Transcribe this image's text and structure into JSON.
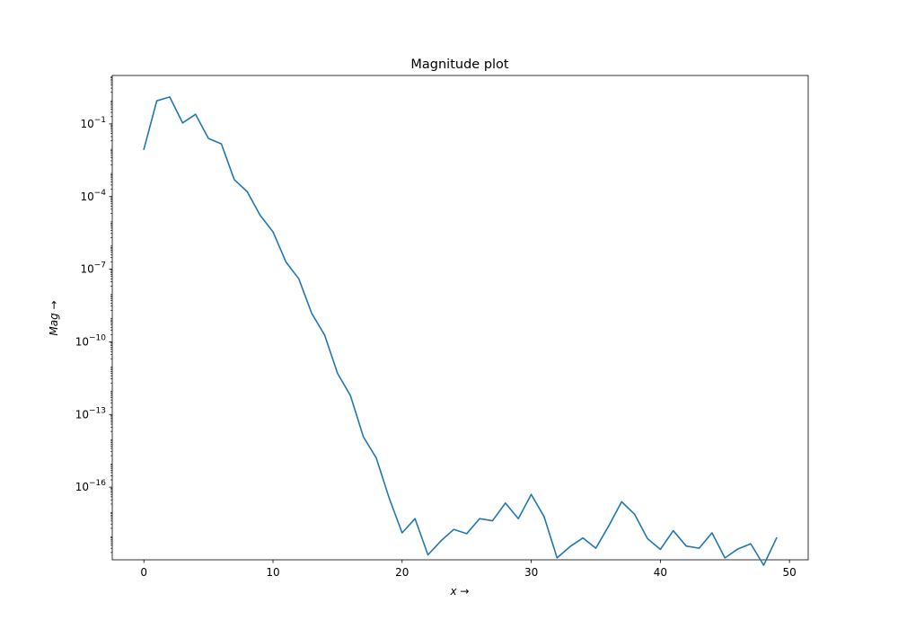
{
  "chart_data": {
    "type": "line",
    "title": "Magnitude plot",
    "xlabel": "x →",
    "ylabel": "Mag →",
    "xscale": "linear",
    "yscale": "log",
    "xlim": [
      -2.45,
      51.45
    ],
    "ylim": [
      1e-19,
      10.0
    ],
    "x_ticks": [
      0,
      10,
      20,
      30,
      40,
      50
    ],
    "x_tick_labels": [
      "0",
      "10",
      "20",
      "30",
      "40",
      "50"
    ],
    "y_ticks": [
      1e-16,
      1e-13,
      1e-10,
      1e-07,
      0.0001,
      0.1
    ],
    "y_tick_labels": [
      {
        "base": "10",
        "exp": "−16"
      },
      {
        "base": "10",
        "exp": "−13"
      },
      {
        "base": "10",
        "exp": "−10"
      },
      {
        "base": "10",
        "exp": "−7"
      },
      {
        "base": "10",
        "exp": "−4"
      },
      {
        "base": "10",
        "exp": "−1"
      }
    ],
    "grid": false,
    "series": [
      {
        "color": "#1f77b4",
        "x": [
          0,
          1,
          2,
          3,
          4,
          5,
          6,
          7,
          8,
          9,
          10,
          11,
          12,
          13,
          14,
          15,
          16,
          17,
          18,
          19,
          20,
          21,
          22,
          23,
          24,
          25,
          26,
          27,
          28,
          29,
          30,
          31,
          32,
          33,
          34,
          35,
          36,
          37,
          38,
          39,
          40,
          41,
          42,
          43,
          44,
          45,
          46,
          47,
          48,
          49
        ],
        "y": [
          0.009,
          0.9,
          1.3,
          0.11,
          0.25,
          0.025,
          0.015,
          0.0005,
          0.00016,
          1.7e-05,
          3.5e-06,
          2e-07,
          4e-08,
          1.5e-09,
          1.9e-10,
          5e-12,
          6e-13,
          1.2e-14,
          1.6e-15,
          3.5e-17,
          1.3e-18,
          5e-18,
          1.6e-19,
          6e-19,
          1.8e-18,
          1.2e-18,
          5e-18,
          4.1e-18,
          2.2e-17,
          5e-18,
          5e-17,
          6e-18,
          1.2e-19,
          3.5e-19,
          8e-19,
          3e-19,
          2.5e-18,
          2.5e-17,
          7.7e-18,
          7.5e-19,
          2.7e-19,
          1.6e-18,
          3.7e-19,
          3e-19,
          1.3e-18,
          1.2e-19,
          2.8e-19,
          4.6e-19,
          6e-20,
          8e-19
        ]
      }
    ]
  }
}
